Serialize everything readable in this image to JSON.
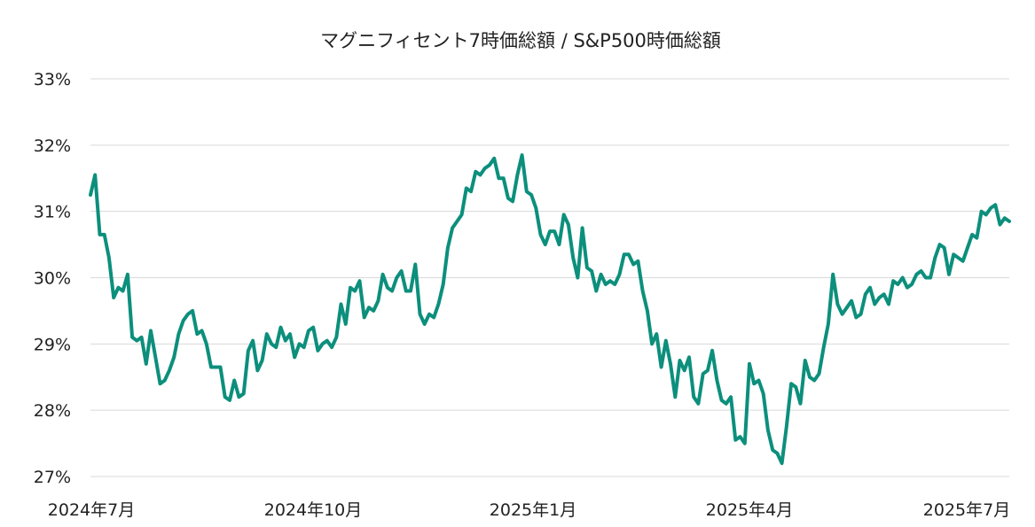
{
  "chart_data": {
    "type": "line",
    "title": "マグニフィセント7時価総額 / S&P500時価総額",
    "xlabel": "",
    "ylabel": "",
    "ylim": [
      27,
      33
    ],
    "ytick_labels": [
      "27%",
      "28%",
      "29%",
      "30%",
      "31%",
      "32%",
      "33%"
    ],
    "xtick_labels": [
      "2024年7月",
      "2024年10月",
      "2025年1月",
      "2025年4月",
      "2025年7月"
    ],
    "grid": true,
    "legend": "none",
    "color": "#0c8f7c",
    "series": [
      {
        "values": [
          31.25,
          31.55,
          30.65,
          30.65,
          30.3,
          29.7,
          29.85,
          29.8,
          30.05,
          29.1,
          29.05,
          29.1,
          28.7,
          29.2,
          28.8,
          28.4,
          28.45,
          28.6,
          28.8,
          29.15,
          29.35,
          29.45,
          29.5,
          29.15,
          29.2,
          29.0,
          28.65,
          28.65,
          28.65,
          28.2,
          28.15,
          28.45,
          28.2,
          28.25,
          28.9,
          29.05,
          28.6,
          28.75,
          29.15,
          29.0,
          28.95,
          29.25,
          29.05,
          29.15,
          28.8,
          29.0,
          28.95,
          29.2,
          29.25,
          28.9,
          29.0,
          29.05,
          28.95,
          29.1,
          29.6,
          29.3,
          29.85,
          29.8,
          29.95,
          29.4,
          29.55,
          29.5,
          29.65,
          30.05,
          29.85,
          29.8,
          30.0,
          30.1,
          29.8,
          29.8,
          30.2,
          29.45,
          29.3,
          29.45,
          29.4,
          29.6,
          29.9,
          30.45,
          30.75,
          30.85,
          30.95,
          31.35,
          31.3,
          31.6,
          31.55,
          31.65,
          31.7,
          31.8,
          31.5,
          31.5,
          31.2,
          31.15,
          31.55,
          31.85,
          31.3,
          31.25,
          31.05,
          30.65,
          30.5,
          30.7,
          30.7,
          30.5,
          30.95,
          30.8,
          30.3,
          30.0,
          30.75,
          30.15,
          30.1,
          29.8,
          30.05,
          29.9,
          29.95,
          29.9,
          30.05,
          30.35,
          30.35,
          30.2,
          30.25,
          29.8,
          29.5,
          29.0,
          29.15,
          28.65,
          29.05,
          28.7,
          28.2,
          28.75,
          28.6,
          28.8,
          28.2,
          28.1,
          28.55,
          28.6,
          28.9,
          28.45,
          28.15,
          28.1,
          28.2,
          27.55,
          27.6,
          27.5,
          28.7,
          28.4,
          28.45,
          28.25,
          27.7,
          27.4,
          27.35,
          27.2,
          27.75,
          28.4,
          28.35,
          28.1,
          28.75,
          28.5,
          28.45,
          28.55,
          28.95,
          29.3,
          30.05,
          29.6,
          29.45,
          29.55,
          29.65,
          29.4,
          29.45,
          29.75,
          29.85,
          29.6,
          29.7,
          29.75,
          29.6,
          29.95,
          29.9,
          30.0,
          29.85,
          29.9,
          30.05,
          30.1,
          30.0,
          30.0,
          30.3,
          30.5,
          30.45,
          30.05,
          30.35,
          30.3,
          30.25,
          30.45,
          30.65,
          30.6,
          31.0,
          30.95,
          31.05,
          31.1,
          30.8,
          30.9,
          30.85
        ]
      }
    ]
  }
}
